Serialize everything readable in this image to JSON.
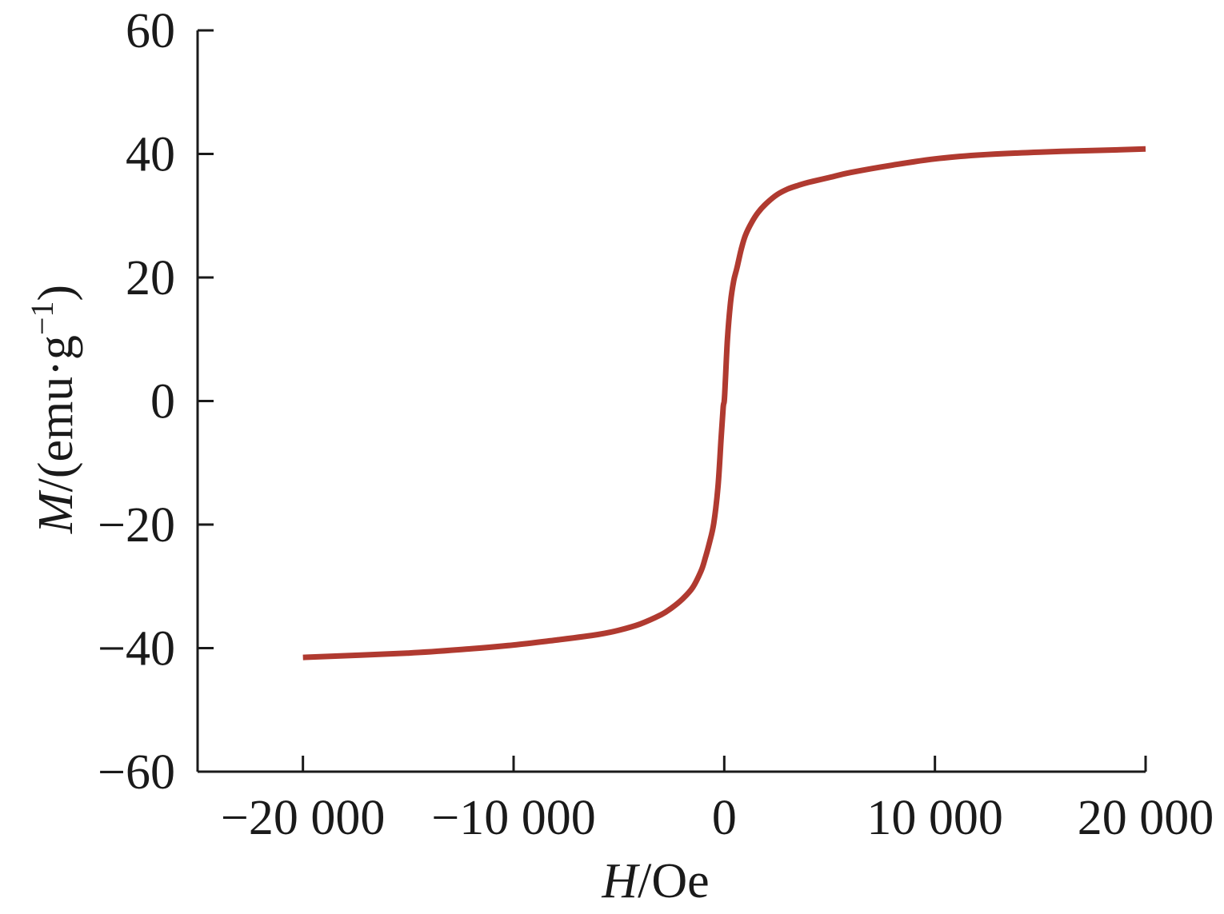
{
  "chart_data": {
    "type": "line",
    "xlabel_symbol": "H",
    "xlabel_unit": "/Oe",
    "ylabel_symbol": "M",
    "ylabel_unit_prefix": "/(emu·g",
    "ylabel_unit_exp": "−1",
    "ylabel_unit_suffix": ")",
    "xlim": [
      -25000,
      20000
    ],
    "ylim": [
      -60,
      60
    ],
    "x_ticks": [
      -20000,
      -10000,
      0,
      10000,
      20000
    ],
    "x_tick_labels": [
      "−20 000",
      "−10 000",
      "0",
      "10 000",
      "20 000"
    ],
    "y_ticks": [
      -60,
      -40,
      -20,
      0,
      20,
      40,
      60
    ],
    "y_tick_labels": [
      "−60",
      "−40",
      "−20",
      "0",
      "20",
      "40",
      "60"
    ],
    "grid": false,
    "color": "#b03a30",
    "series": [
      {
        "x": [
          -20000,
          -15000,
          -12000,
          -10000,
          -8000,
          -6000,
          -5000,
          -4000,
          -3000,
          -2500,
          -2000,
          -1500,
          -1100,
          -900,
          -700,
          -500,
          -300,
          -150,
          -50,
          0,
          50,
          150,
          300,
          450,
          600,
          800,
          1000,
          1300,
          1600,
          2000,
          2500,
          3000,
          3500,
          4000,
          5000,
          6000,
          8000,
          10000,
          12000,
          15000,
          18000,
          20000
        ],
        "y": [
          -41.5,
          -40.8,
          -40.1,
          -39.5,
          -38.7,
          -37.8,
          -37.1,
          -36.1,
          -34.6,
          -33.5,
          -32.1,
          -30.2,
          -27.5,
          -25.4,
          -22.9,
          -19.8,
          -14.0,
          -6.0,
          -1.0,
          0,
          3.0,
          10.0,
          16.0,
          19.5,
          21.5,
          24.5,
          26.8,
          28.9,
          30.5,
          32.0,
          33.4,
          34.3,
          34.9,
          35.4,
          36.2,
          37.0,
          38.2,
          39.2,
          39.8,
          40.3,
          40.6,
          40.8
        ]
      }
    ]
  }
}
